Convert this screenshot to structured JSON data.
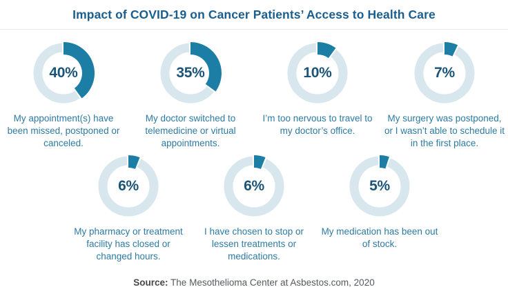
{
  "header": {
    "title": "Impact of COVID-19 on Cancer Patients’ Access to Health Care"
  },
  "chart_data": {
    "type": "pie",
    "subtype": "donut-multiples",
    "title": "Impact of COVID-19 on Cancer Patients’ Access to Health Care",
    "unit": "%",
    "value_range": [
      0,
      100
    ],
    "legend_position": "none",
    "layout_rows": [
      4,
      3
    ],
    "items": [
      {
        "value": 40,
        "value_label": "40%",
        "label": "My appointment(s) have been missed, postponed or canceled."
      },
      {
        "value": 35,
        "value_label": "35%",
        "label": "My doctor switched to telemedicine or virtual appointments."
      },
      {
        "value": 10,
        "value_label": "10%",
        "label": "I’m too nervous to travel to my doctor’s office."
      },
      {
        "value": 7,
        "value_label": "7%",
        "label": "My surgery was postponed, or I wasn’t able to schedule it in the first place."
      },
      {
        "value": 6,
        "value_label": "6%",
        "label": "My pharmacy or treatment facility has closed or changed hours."
      },
      {
        "value": 6,
        "value_label": "6%",
        "label": "I have chosen to stop or lessen treatments or medications."
      },
      {
        "value": 5,
        "value_label": "5%",
        "label": "My medication has been out of stock."
      }
    ],
    "colors": {
      "arc": "#1d7ea5",
      "track": "#d8e7ee",
      "value_text": "#1b5478",
      "label_text": "#2d7aa3",
      "title_text": "#1a5e90"
    }
  },
  "footer": {
    "source_prefix": "Source:",
    "source_text": " The Mesothelioma Center at Asbestos.com, 2020"
  }
}
